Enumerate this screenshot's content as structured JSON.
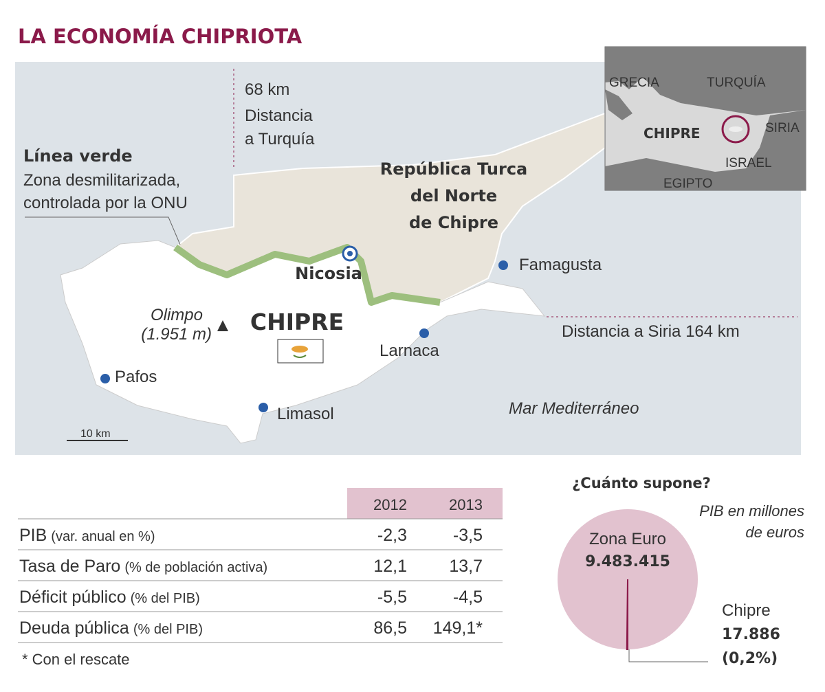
{
  "header": {
    "title": "LA ECONOMÍA CHIPRIOTA"
  },
  "map": {
    "turkey_distance": [
      "68 km",
      "Distancia",
      "a Turquía"
    ],
    "green_line": {
      "title": "Línea verde",
      "text": [
        "Zona desmilitarizada,",
        "controlada por la ONU"
      ]
    },
    "north": [
      "República Turca",
      "del Norte",
      "de Chipre"
    ],
    "country": "CHIPRE",
    "mountain": [
      "Olimpo",
      "(1.951 m)"
    ],
    "cities": [
      "Nicosia",
      "Famagusta",
      "Larnaca",
      "Pafos",
      "Limasol"
    ],
    "syria_distance": "Distancia a Siria 164 km",
    "sea": "Mar Mediterráneo",
    "scale": "10 km",
    "inset": [
      "GRECIA",
      "TURQUÍA",
      "CHIPRE",
      "SIRIA",
      "ISRAEL",
      "EGIPTO"
    ]
  },
  "table": {
    "columns": [
      "2012",
      "2013"
    ],
    "rows": [
      [
        "PIB",
        "(var. anual en %)",
        "-2,3",
        "-3,5"
      ],
      [
        "Tasa de Paro",
        "(% de población activa)",
        "12,1",
        "13,7"
      ],
      [
        "Déficit público",
        "(% del PIB)",
        "-5,5",
        "-4,5"
      ],
      [
        "Deuda pública",
        "(% del PIB)",
        "86,5",
        "149,1*"
      ]
    ],
    "footnote": "* Con el rescate"
  },
  "chart_data": {
    "type": "pie",
    "title": "¿Cuánto supone?",
    "subtitle": [
      "PIB en millones",
      "de euros"
    ],
    "categories": [
      "Zona Euro",
      "Chipre"
    ],
    "values": [
      9483415,
      17886
    ],
    "value_labels": [
      "9.483.415",
      "17.886"
    ],
    "share_label": "(0,2%)",
    "colors": [
      "#e2c2cf",
      "#8b1a4a"
    ]
  }
}
